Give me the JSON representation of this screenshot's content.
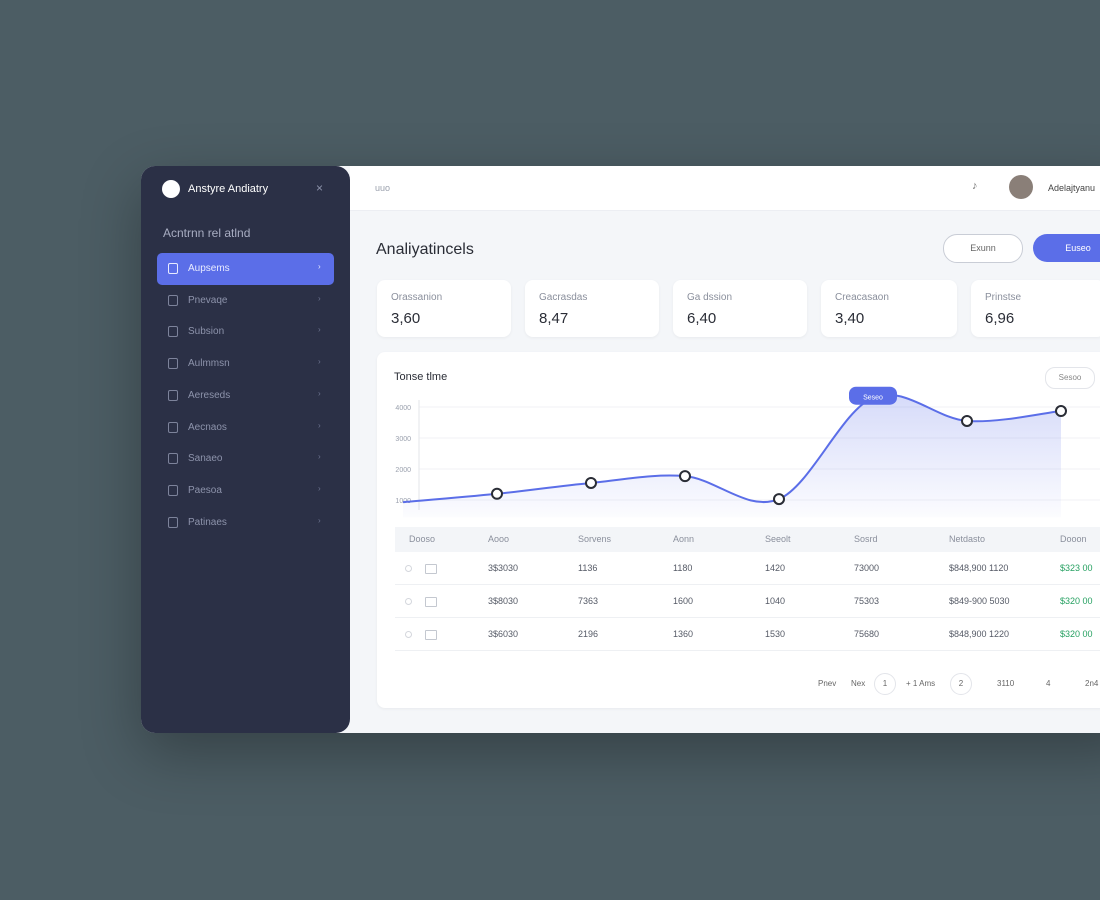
{
  "sidebar": {
    "brand": "Anstyre Andiatry",
    "section": "Acntrnn rel atlnd",
    "items": [
      "Aupsems",
      "Pnevaqe",
      "Subsion",
      "Aulmmsn",
      "Aereseds",
      "Aecnaos",
      "Sanaeo",
      "Paesoa",
      "Patinaes"
    ]
  },
  "topbar": {
    "breadcrumb": "uuo",
    "user": "Adelajtyanu"
  },
  "header": {
    "title": "Analiyatincels",
    "buttons": [
      "Exunn",
      "Euseo"
    ]
  },
  "stats": [
    {
      "label": "Orassanion",
      "value": "3,60"
    },
    {
      "label": "Gacrasdas",
      "value": "8,47"
    },
    {
      "label": "Ga dssion",
      "value": "6,40"
    },
    {
      "label": "Creacasaon",
      "value": "3,40"
    },
    {
      "label": "Prinstse",
      "value": "6,96"
    }
  ],
  "chart_data": {
    "type": "line",
    "title": "Tonse tlme",
    "values": [
      930,
      1200,
      1550,
      1770,
      1030,
      4300,
      3550,
      3870
    ],
    "ylim": [
      600,
      4500
    ],
    "yticks": [
      1000,
      2000,
      3000,
      4000
    ],
    "color": "#5b6ee8",
    "annotation": "Seseo",
    "filter": "Sesoo"
  },
  "table": {
    "headers": [
      "Dooso",
      "Aooo",
      "Sorvens",
      "Aonn",
      "Seeolt",
      "Sosrd",
      "Netdasto",
      "Dooon"
    ],
    "rows": [
      [
        "3$3030",
        "1136",
        "1180",
        "1420",
        "73000",
        "$848,900 1120",
        "$323 00"
      ],
      [
        "3$8030",
        "7363",
        "1600",
        "1040",
        "75303",
        "$849-900 5030",
        "$320 00"
      ],
      [
        "3$6030",
        "2196",
        "1360",
        "1530",
        "75680",
        "$848,900 1220",
        "$320 00"
      ]
    ]
  },
  "pagination": [
    "Pnev",
    "Nex",
    "1",
    "+ 1 Ams",
    "2",
    "3110",
    "4",
    "2n4"
  ]
}
